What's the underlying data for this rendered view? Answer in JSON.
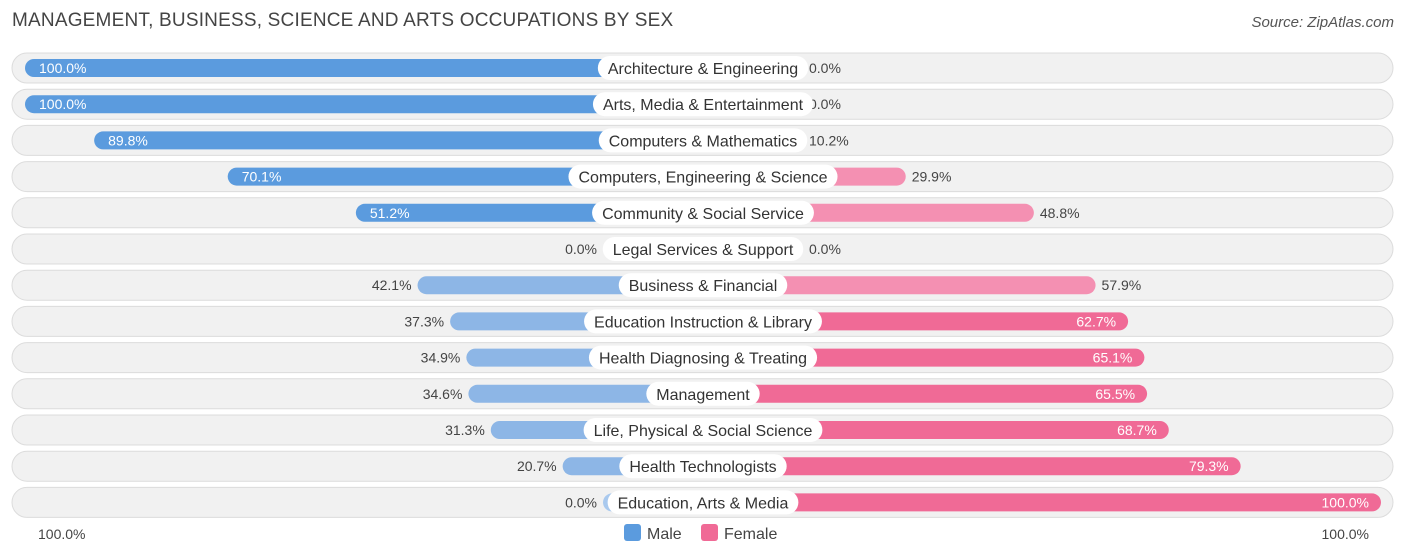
{
  "chart_data": {
    "type": "bar",
    "orientation": "horizontal-diverging",
    "title": "MANAGEMENT, BUSINESS, SCIENCE AND ARTS OCCUPATIONS BY SEX",
    "source": "Source: ZipAtlas.com",
    "categories": [
      "Architecture & Engineering",
      "Arts, Media & Entertainment",
      "Computers & Mathematics",
      "Computers, Engineering & Science",
      "Community & Social Service",
      "Legal Services & Support",
      "Business & Financial",
      "Education Instruction & Library",
      "Health Diagnosing & Treating",
      "Management",
      "Life, Physical & Social Science",
      "Health Technologists",
      "Education, Arts & Media"
    ],
    "series": [
      {
        "name": "Male",
        "color": "#5b9bde",
        "values": [
          100.0,
          100.0,
          89.8,
          70.1,
          51.2,
          0.0,
          42.1,
          37.3,
          34.9,
          34.6,
          31.3,
          20.7,
          0.0
        ],
        "labels": [
          "100.0%",
          "100.0%",
          "89.8%",
          "70.1%",
          "51.2%",
          "0.0%",
          "42.1%",
          "37.3%",
          "34.9%",
          "34.6%",
          "31.3%",
          "20.7%",
          "0.0%"
        ]
      },
      {
        "name": "Female",
        "color": "#f06a96",
        "values": [
          0.0,
          0.0,
          10.2,
          29.9,
          48.8,
          0.0,
          57.9,
          62.7,
          65.1,
          65.5,
          68.7,
          79.3,
          100.0
        ],
        "labels": [
          "0.0%",
          "0.0%",
          "10.2%",
          "29.9%",
          "48.8%",
          "0.0%",
          "57.9%",
          "62.7%",
          "65.1%",
          "65.5%",
          "68.7%",
          "79.3%",
          "100.0%"
        ]
      }
    ],
    "xlim": [
      0,
      100
    ],
    "axis_left_label": "100.0%",
    "axis_right_label": "100.0%",
    "legend_position": "bottom-center"
  }
}
